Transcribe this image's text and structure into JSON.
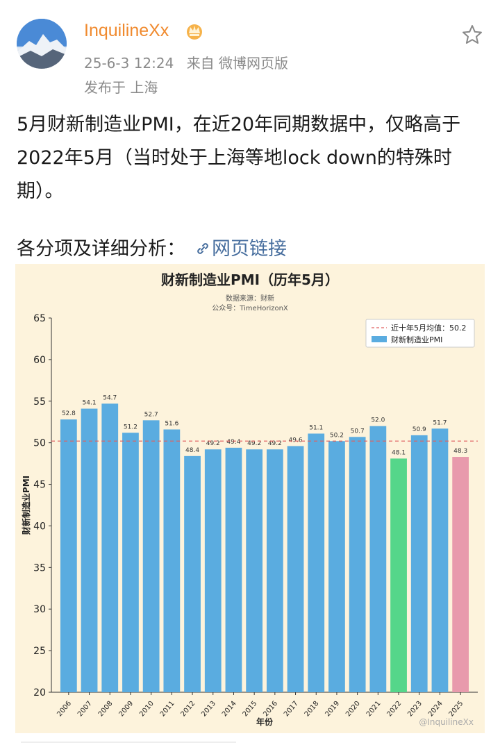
{
  "post": {
    "username": "InquilineXx",
    "date": "25-6-3 12:24",
    "source": "来自 微博网页版",
    "location": "发布于 上海",
    "text": "5月财新制造业PMI，在近20年同期数据中，仅略高于2022年5月（当时处于上海等地lock down的特殊时期）。",
    "analysis_prefix": "各分项及详细分析：",
    "link_label": "网页链接"
  },
  "chart": {
    "title": "财新制造业PMI（历年5月）",
    "subtitle_source": "数据来源：财新",
    "subtitle_account": "公众号：TimeHorizonX",
    "watermark_bottom": "@InquilineXx"
  },
  "colors": {
    "accent_username": "#f08a2e",
    "bar_default": "#5aace0",
    "bar_2022": "#55d68a",
    "bar_2025": "#e89aac",
    "avg_line": "#e06060",
    "background": "#fdf3dc",
    "link": "#476e9e"
  },
  "chart_data": {
    "type": "bar",
    "title": "财新制造业PMI（历年5月）",
    "xlabel": "年份",
    "ylabel": "财新制造业PMI",
    "ylim": [
      20,
      65
    ],
    "yticks": [
      20,
      25,
      30,
      35,
      40,
      45,
      50,
      55,
      60,
      65
    ],
    "grid": false,
    "legend_position": "top-right",
    "categories": [
      "2006",
      "2007",
      "2008",
      "2009",
      "2010",
      "2011",
      "2012",
      "2013",
      "2014",
      "2015",
      "2016",
      "2017",
      "2018",
      "2019",
      "2020",
      "2021",
      "2022",
      "2023",
      "2024",
      "2025"
    ],
    "series": [
      {
        "name": "财新制造业PMI",
        "values": [
          52.8,
          54.1,
          54.7,
          51.2,
          52.7,
          51.6,
          48.4,
          49.2,
          49.4,
          49.2,
          49.2,
          49.6,
          51.1,
          50.2,
          50.7,
          52.0,
          48.1,
          50.9,
          51.7,
          48.3
        ]
      }
    ],
    "highlight": {
      "2022": "bar_2022",
      "2025": "bar_2025"
    },
    "reference_line": {
      "name": "近十年5月均值：50.2",
      "value": 50.2,
      "style": "dashed"
    }
  }
}
